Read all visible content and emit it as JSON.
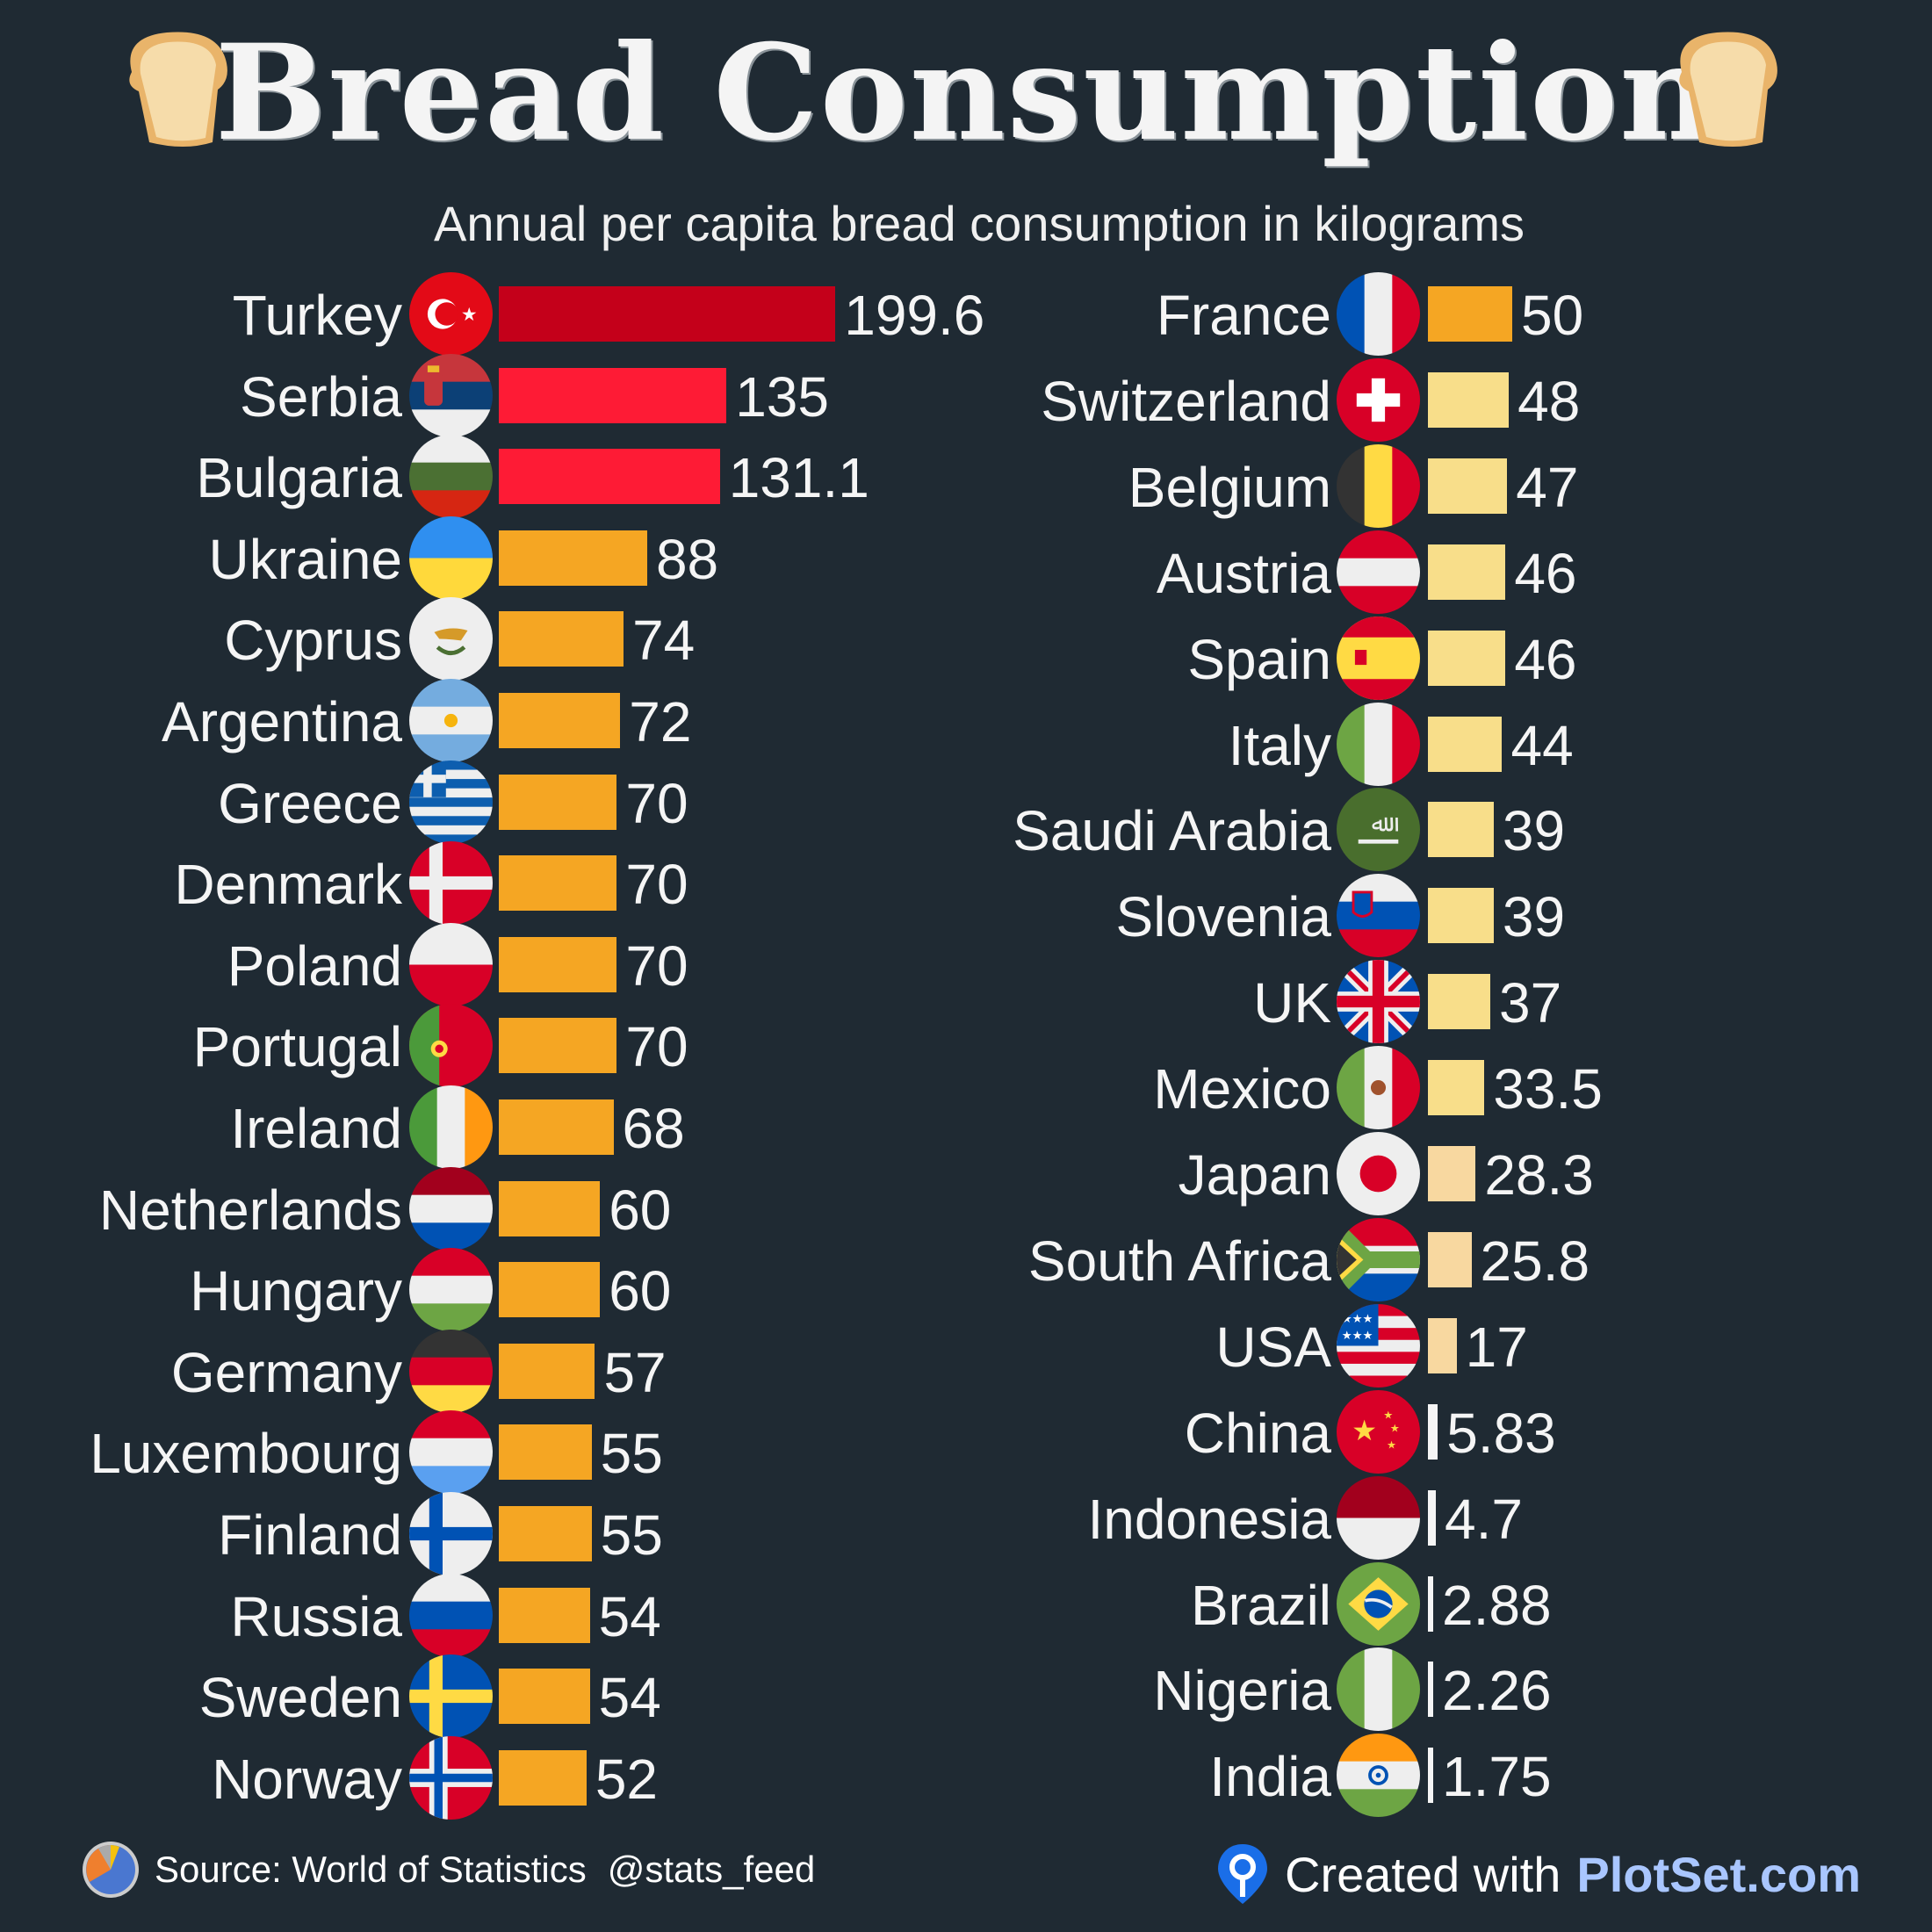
{
  "chart_data": {
    "type": "bar",
    "orientation": "horizontal",
    "title": "Bread Consumption",
    "subtitle": "Annual per capita bread consumption in kilograms",
    "unit": "kg per capita per year",
    "colors": {
      "background": "#1f2a33",
      "top": "#c4001a",
      "high": "#fe1b35",
      "mid": "#f5a623",
      "low": "#f8de8a",
      "lowest": "#f8d8a0"
    },
    "columns": [
      [
        {
          "country": "Turkey",
          "value": 199.6,
          "label": "199.6",
          "flag_icon": "turkey-flag-icon"
        },
        {
          "country": "Serbia",
          "value": 135,
          "label": "135",
          "flag_icon": "serbia-flag-icon"
        },
        {
          "country": "Bulgaria",
          "value": 131.1,
          "label": "131.1",
          "flag_icon": "bulgaria-flag-icon"
        },
        {
          "country": "Ukraine",
          "value": 88,
          "label": "88",
          "flag_icon": "ukraine-flag-icon"
        },
        {
          "country": "Cyprus",
          "value": 74,
          "label": "74",
          "flag_icon": "cyprus-flag-icon"
        },
        {
          "country": "Argentina",
          "value": 72,
          "label": "72",
          "flag_icon": "argentina-flag-icon"
        },
        {
          "country": "Greece",
          "value": 70,
          "label": "70",
          "flag_icon": "greece-flag-icon"
        },
        {
          "country": "Denmark",
          "value": 70,
          "label": "70",
          "flag_icon": "denmark-flag-icon"
        },
        {
          "country": "Poland",
          "value": 70,
          "label": "70",
          "flag_icon": "poland-flag-icon"
        },
        {
          "country": "Portugal",
          "value": 70,
          "label": "70",
          "flag_icon": "portugal-flag-icon"
        },
        {
          "country": "Ireland",
          "value": 68,
          "label": "68",
          "flag_icon": "ireland-flag-icon"
        },
        {
          "country": "Netherlands",
          "value": 60,
          "label": "60",
          "flag_icon": "netherlands-flag-icon"
        },
        {
          "country": "Hungary",
          "value": 60,
          "label": "60",
          "flag_icon": "hungary-flag-icon"
        },
        {
          "country": "Germany",
          "value": 57,
          "label": "57",
          "flag_icon": "germany-flag-icon"
        },
        {
          "country": "Luxembourg",
          "value": 55,
          "label": "55",
          "flag_icon": "luxembourg-flag-icon"
        },
        {
          "country": "Finland",
          "value": 55,
          "label": "55",
          "flag_icon": "finland-flag-icon"
        },
        {
          "country": "Russia",
          "value": 54,
          "label": "54",
          "flag_icon": "russia-flag-icon"
        },
        {
          "country": "Sweden",
          "value": 54,
          "label": "54",
          "flag_icon": "sweden-flag-icon"
        },
        {
          "country": "Norway",
          "value": 52,
          "label": "52",
          "flag_icon": "norway-flag-icon"
        }
      ],
      [
        {
          "country": "France",
          "value": 50,
          "label": "50",
          "flag_icon": "france-flag-icon"
        },
        {
          "country": "Switzerland",
          "value": 48,
          "label": "48",
          "flag_icon": "switzerland-flag-icon"
        },
        {
          "country": "Belgium",
          "value": 47,
          "label": "47",
          "flag_icon": "belgium-flag-icon"
        },
        {
          "country": "Austria",
          "value": 46,
          "label": "46",
          "flag_icon": "austria-flag-icon"
        },
        {
          "country": "Spain",
          "value": 46,
          "label": "46",
          "flag_icon": "spain-flag-icon"
        },
        {
          "country": "Italy",
          "value": 44,
          "label": "44",
          "flag_icon": "italy-flag-icon"
        },
        {
          "country": "Saudi Arabia",
          "value": 39,
          "label": "39",
          "flag_icon": "saudi-arabia-flag-icon"
        },
        {
          "country": "Slovenia",
          "value": 39,
          "label": "39",
          "flag_icon": "slovenia-flag-icon"
        },
        {
          "country": "UK",
          "value": 37,
          "label": "37",
          "flag_icon": "uk-flag-icon"
        },
        {
          "country": "Mexico",
          "value": 33.5,
          "label": "33.5",
          "flag_icon": "mexico-flag-icon"
        },
        {
          "country": "Japan",
          "value": 28.3,
          "label": "28.3",
          "flag_icon": "japan-flag-icon"
        },
        {
          "country": "South Africa",
          "value": 25.8,
          "label": "25.8",
          "flag_icon": "south-africa-flag-icon"
        },
        {
          "country": "USA",
          "value": 17,
          "label": "17",
          "flag_icon": "usa-flag-icon"
        },
        {
          "country": "China",
          "value": 5.83,
          "label": "5.83",
          "flag_icon": "china-flag-icon"
        },
        {
          "country": "Indonesia",
          "value": 4.7,
          "label": "4.7",
          "flag_icon": "indonesia-flag-icon"
        },
        {
          "country": "Brazil",
          "value": 2.88,
          "label": "2.88",
          "flag_icon": "brazil-flag-icon"
        },
        {
          "country": "Nigeria",
          "value": 2.26,
          "label": "2.26",
          "flag_icon": "nigeria-flag-icon"
        },
        {
          "country": "India",
          "value": 1.75,
          "label": "1.75",
          "flag_icon": "india-flag-icon"
        }
      ]
    ]
  },
  "footer": {
    "source": "Source: World of Statistics",
    "handle": "@stats_feed",
    "created_with": "Created with",
    "brand": "PlotSet.com"
  }
}
